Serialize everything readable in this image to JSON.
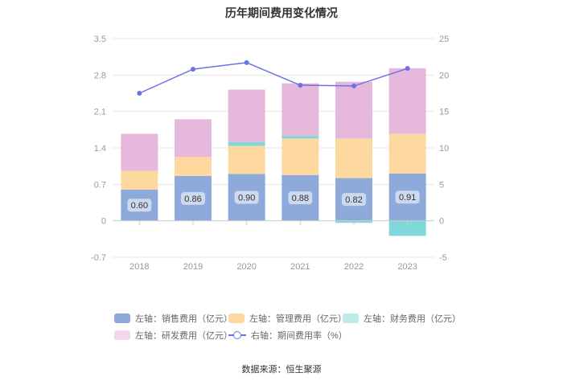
{
  "title": "历年期间费用变化情况",
  "source": "数据来源：恒生聚源",
  "chart_data": {
    "type": "bar",
    "stacked": true,
    "categories": [
      "2018",
      "2019",
      "2020",
      "2021",
      "2022",
      "2023"
    ],
    "left_axis": {
      "min": -0.7,
      "max": 3.5,
      "ticks": [
        "-0.7",
        "0",
        "0.7",
        "1.4",
        "2.1",
        "2.8",
        "3.5"
      ]
    },
    "right_axis": {
      "min": -5,
      "max": 25,
      "ticks": [
        "-5",
        "0",
        "5",
        "10",
        "15",
        "20",
        "25"
      ]
    },
    "series": [
      {
        "name": "左轴：销售费用（亿元）",
        "color": "#8eaadb",
        "values": [
          0.6,
          0.86,
          0.9,
          0.88,
          0.82,
          0.91
        ],
        "labels": [
          "0.60",
          "0.86",
          "0.90",
          "0.88",
          "0.82",
          "0.91"
        ]
      },
      {
        "name": "左轴：管理费用（亿元）",
        "color": "#fdd9a0",
        "values": [
          0.36,
          0.37,
          0.54,
          0.7,
          0.76,
          0.76
        ]
      },
      {
        "name": "左轴：财务费用（亿元）",
        "color": "#7fd9d9",
        "values": [
          0.0,
          0.0,
          0.07,
          0.05,
          -0.04,
          -0.29
        ]
      },
      {
        "name": "左轴：研发费用（亿元）",
        "color": "#e6b8dc",
        "values": [
          0.71,
          0.72,
          1.01,
          1.01,
          1.09,
          1.26
        ]
      }
    ],
    "line_series": {
      "name": "右轴：期间费用率（%）",
      "color": "#6a72e6",
      "axis": "right",
      "values": [
        17.5,
        20.8,
        21.7,
        18.6,
        18.5,
        20.9
      ]
    }
  }
}
